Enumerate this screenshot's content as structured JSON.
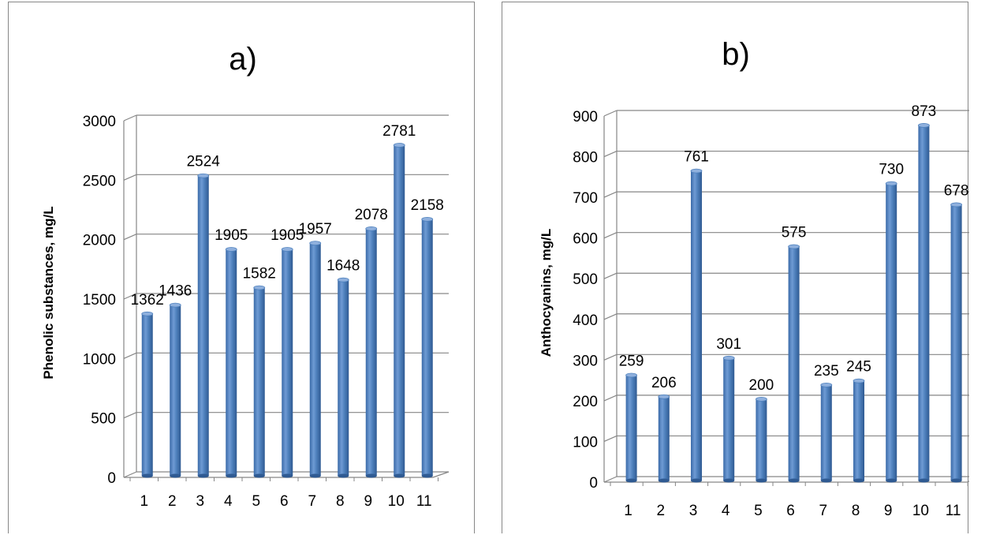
{
  "chart_data": [
    {
      "type": "bar",
      "title": "a)",
      "xlabel": "",
      "ylabel": "Phenolic substances, mg/L",
      "ylim": [
        0,
        3000
      ],
      "yticks": [
        0,
        500,
        1000,
        1500,
        2000,
        2500,
        3000
      ],
      "categories": [
        "1",
        "2",
        "3",
        "4",
        "5",
        "6",
        "7",
        "8",
        "9",
        "10",
        "11"
      ],
      "values": [
        1362,
        1436,
        2524,
        1905,
        1582,
        1905,
        1957,
        1648,
        2078,
        2781,
        2158
      ],
      "grid": true,
      "color": "#4f81bd"
    },
    {
      "type": "bar",
      "title": "b)",
      "xlabel": "",
      "ylabel": "Anthocyanins, mg/L",
      "ylim": [
        0,
        900
      ],
      "yticks": [
        0,
        100,
        200,
        300,
        400,
        500,
        600,
        700,
        800,
        900
      ],
      "categories": [
        "1",
        "2",
        "3",
        "4",
        "5",
        "6",
        "7",
        "8",
        "9",
        "10",
        "11"
      ],
      "values": [
        259,
        206,
        761,
        301,
        200,
        575,
        235,
        245,
        730,
        873,
        678
      ],
      "grid": true,
      "color": "#4f81bd"
    }
  ]
}
